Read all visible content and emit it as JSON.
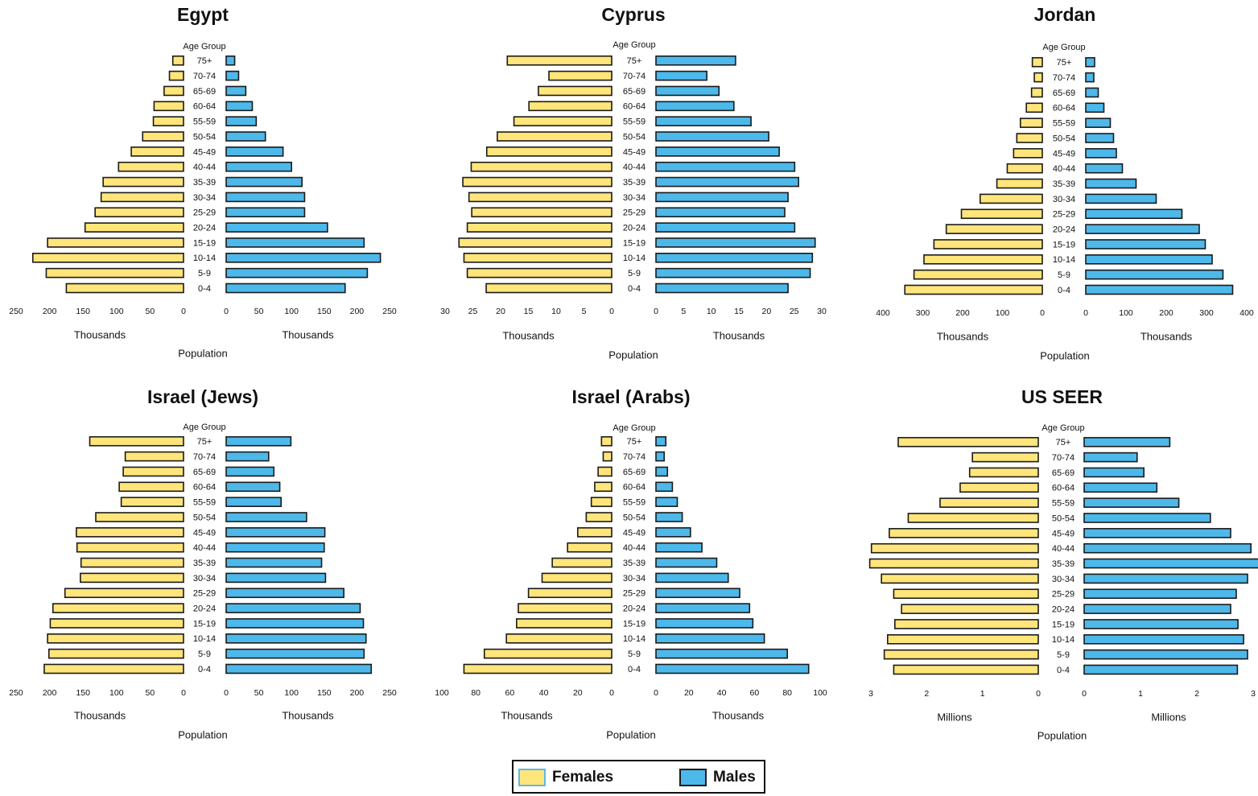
{
  "colors": {
    "females": "#FFE57A",
    "males": "#4DB8EA",
    "outline": "#1a1a1a",
    "legend_female_border": "#5BB8E8"
  },
  "legend": {
    "females_label": "Females",
    "males_label": "Males"
  },
  "chart_data": [
    {
      "type": "bar",
      "title": "Egypt",
      "age_axis_label": "Age Group",
      "age_groups": [
        "0-4",
        "5-9",
        "10-14",
        "15-19",
        "20-24",
        "25-29",
        "30-34",
        "35-39",
        "40-44",
        "45-49",
        "50-54",
        "55-59",
        "60-64",
        "65-69",
        "70-74",
        "75+"
      ],
      "series": [
        {
          "name": "Females",
          "values": [
            175,
            205,
            225,
            203,
            147,
            132,
            123,
            120,
            97,
            78,
            61,
            45,
            44,
            29,
            21,
            16
          ]
        },
        {
          "name": "Males",
          "values": [
            182,
            216,
            236,
            211,
            155,
            120,
            120,
            116,
            100,
            87,
            60,
            46,
            40,
            30,
            19,
            13
          ]
        }
      ],
      "xlim": [
        0,
        250
      ],
      "female_ticks": [
        "250",
        "200",
        "150",
        "100",
        "50",
        "0"
      ],
      "male_ticks": [
        "0",
        "50",
        "100",
        "150",
        "200",
        "250"
      ],
      "unit_left": "Thousands",
      "unit_right": "Thousands",
      "xlabel": "Population"
    },
    {
      "type": "bar",
      "title": "Cyprus",
      "age_axis_label": "Age Group",
      "age_groups": [
        "0-4",
        "5-9",
        "10-14",
        "15-19",
        "20-24",
        "25-29",
        "30-34",
        "35-39",
        "40-44",
        "45-49",
        "50-54",
        "55-59",
        "60-64",
        "65-69",
        "70-74",
        "75+"
      ],
      "series": [
        {
          "name": "Females",
          "values": [
            22.6,
            26.0,
            26.6,
            27.5,
            26.0,
            25.2,
            25.7,
            26.8,
            25.3,
            22.5,
            20.6,
            17.6,
            14.9,
            13.2,
            11.3,
            18.8
          ]
        },
        {
          "name": "Males",
          "values": [
            23.9,
            27.9,
            28.3,
            28.8,
            25.1,
            23.3,
            23.9,
            25.8,
            25.1,
            22.3,
            20.4,
            17.2,
            14.1,
            11.4,
            9.2,
            14.4
          ]
        }
      ],
      "xlim": [
        0,
        30
      ],
      "female_ticks": [
        "30",
        "25",
        "20",
        "15",
        "10",
        "5",
        "0"
      ],
      "male_ticks": [
        "0",
        "5",
        "10",
        "15",
        "20",
        "25",
        "30"
      ],
      "unit_left": "Thousands",
      "unit_right": "Thousands",
      "xlabel": "Population"
    },
    {
      "type": "bar",
      "title": "Jordan",
      "age_axis_label": "Age Group",
      "age_groups": [
        "0-4",
        "5-9",
        "10-14",
        "15-19",
        "20-24",
        "25-29",
        "30-34",
        "35-39",
        "40-44",
        "45-49",
        "50-54",
        "55-59",
        "60-64",
        "65-69",
        "70-74",
        "75+"
      ],
      "series": [
        {
          "name": "Females",
          "values": [
            345,
            322,
            297,
            272,
            241,
            203,
            156,
            114,
            88,
            72,
            64,
            55,
            40,
            27,
            20,
            25
          ]
        },
        {
          "name": "Males",
          "values": [
            365,
            341,
            314,
            297,
            282,
            239,
            175,
            125,
            91,
            76,
            69,
            61,
            45,
            31,
            20,
            22
          ]
        }
      ],
      "xlim": [
        0,
        400
      ],
      "female_ticks": [
        "400",
        "300",
        "200",
        "100",
        "0"
      ],
      "male_ticks": [
        "0",
        "100",
        "200",
        "300",
        "400"
      ],
      "unit_left": "Thousands",
      "unit_right": "Thousands",
      "xlabel": "Population"
    },
    {
      "type": "bar",
      "title": "Israel (Jews)",
      "age_axis_label": "Age Group",
      "age_groups": [
        "0-4",
        "5-9",
        "10-14",
        "15-19",
        "20-24",
        "25-29",
        "30-34",
        "35-39",
        "40-44",
        "45-49",
        "50-54",
        "55-59",
        "60-64",
        "65-69",
        "70-74",
        "75+"
      ],
      "series": [
        {
          "name": "Females",
          "values": [
            208,
            201,
            203,
            199,
            195,
            177,
            154,
            153,
            159,
            160,
            131,
            93,
            96,
            90,
            87,
            140
          ]
        },
        {
          "name": "Males",
          "values": [
            222,
            211,
            214,
            210,
            205,
            180,
            152,
            146,
            150,
            151,
            123,
            84,
            82,
            73,
            65,
            99
          ]
        }
      ],
      "xlim": [
        0,
        250
      ],
      "female_ticks": [
        "250",
        "200",
        "150",
        "100",
        "50",
        "0"
      ],
      "male_ticks": [
        "0",
        "50",
        "100",
        "150",
        "200",
        "250"
      ],
      "unit_left": "Thousands",
      "unit_right": "Thousands",
      "xlabel": "Population"
    },
    {
      "type": "bar",
      "title": "Israel (Arabs)",
      "age_axis_label": "Age Group",
      "age_groups": [
        "0-4",
        "5-9",
        "10-14",
        "15-19",
        "20-24",
        "25-29",
        "30-34",
        "35-39",
        "40-44",
        "45-49",
        "50-54",
        "55-59",
        "60-64",
        "65-69",
        "70-74",
        "75+"
      ],
      "series": [
        {
          "name": "Females",
          "values": [
            87,
            75,
            62,
            56,
            55,
            49,
            41,
            35,
            26,
            20,
            15,
            12,
            10,
            8,
            5,
            6
          ]
        },
        {
          "name": "Males",
          "values": [
            93,
            80,
            66,
            59,
            57,
            51,
            44,
            37,
            28,
            21,
            16,
            13,
            10,
            7,
            5,
            6
          ]
        }
      ],
      "xlim": [
        0,
        100
      ],
      "female_ticks": [
        "100",
        "80",
        "60",
        "40",
        "20",
        "0"
      ],
      "male_ticks": [
        "0",
        "20",
        "40",
        "60",
        "80",
        "100"
      ],
      "unit_left": "Thousands",
      "unit_right": "Thousands",
      "xlabel": "Population"
    },
    {
      "type": "bar",
      "title": "US SEER",
      "age_axis_label": "Age Group",
      "age_groups": [
        "0-4",
        "5-9",
        "10-14",
        "15-19",
        "20-24",
        "25-29",
        "30-34",
        "35-39",
        "40-44",
        "45-49",
        "50-54",
        "55-59",
        "60-64",
        "65-69",
        "70-74",
        "75+"
      ],
      "series": [
        {
          "name": "Females",
          "values": [
            2.59,
            2.76,
            2.7,
            2.57,
            2.45,
            2.59,
            2.81,
            3.02,
            2.99,
            2.67,
            2.33,
            1.76,
            1.4,
            1.23,
            1.18,
            2.51
          ]
        },
        {
          "name": "Males",
          "values": [
            2.72,
            2.9,
            2.83,
            2.73,
            2.6,
            2.7,
            2.9,
            3.1,
            2.96,
            2.6,
            2.24,
            1.68,
            1.29,
            1.06,
            0.94,
            1.52
          ]
        }
      ],
      "xlim": [
        0,
        3
      ],
      "female_ticks": [
        "3",
        "2",
        "1",
        "0"
      ],
      "male_ticks": [
        "0",
        "1",
        "2",
        "3"
      ],
      "unit_left": "Millions",
      "unit_right": "Millions",
      "xlabel": "Population"
    }
  ]
}
